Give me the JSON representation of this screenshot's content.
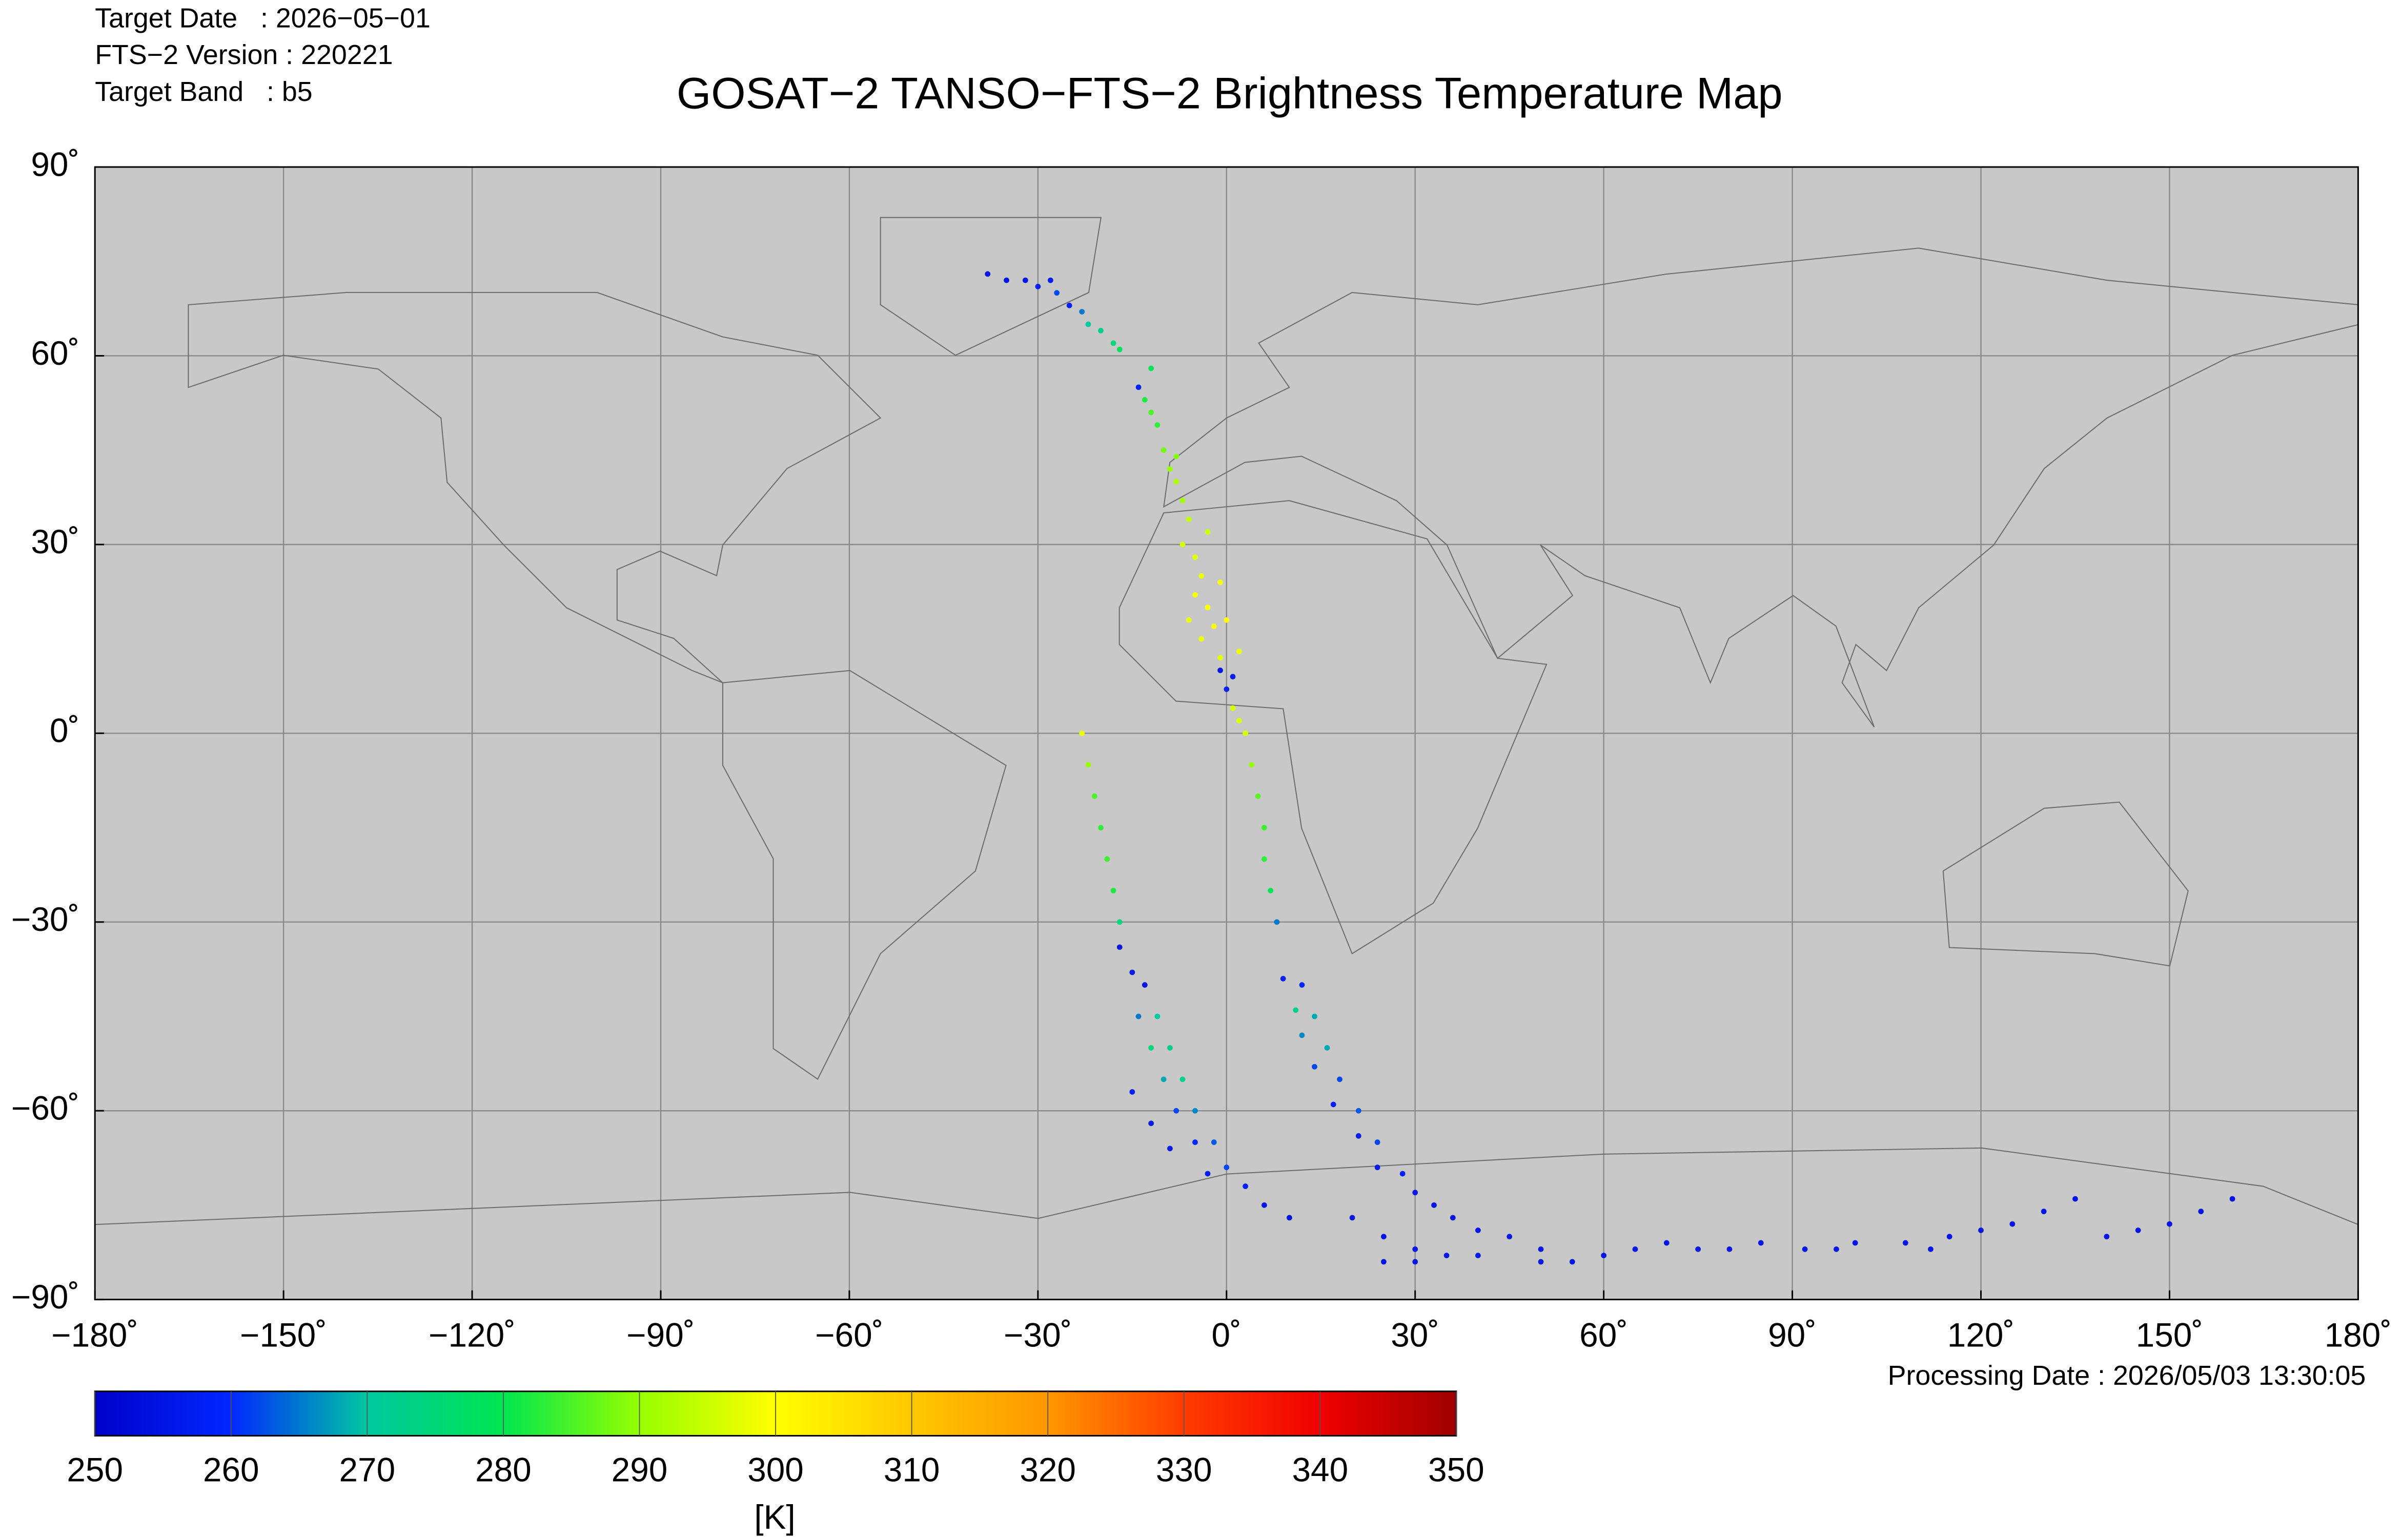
{
  "chart_data": {
    "type": "scatter",
    "title": "GOSAT−2 TANSO−FTS−2 Brightness Temperature Map",
    "info_lines": [
      "Target Date   : 2026−05−01",
      "FTS−2 Version : 220221",
      "Target Band   : b5"
    ],
    "footnote": "Processing Date : 2026/05/03 13:30:05",
    "xlim": [
      -180,
      180
    ],
    "ylim": [
      -90,
      90
    ],
    "xticks": [
      {
        "value": -180,
        "label": "−180˚"
      },
      {
        "value": -150,
        "label": "−150˚"
      },
      {
        "value": -120,
        "label": "−120˚"
      },
      {
        "value": -90,
        "label": "−90˚"
      },
      {
        "value": -60,
        "label": "−60˚"
      },
      {
        "value": -30,
        "label": "−30˚"
      },
      {
        "value": 0,
        "label": "0˚"
      },
      {
        "value": 30,
        "label": "30˚"
      },
      {
        "value": 60,
        "label": "60˚"
      },
      {
        "value": 90,
        "label": "90˚"
      },
      {
        "value": 120,
        "label": "120˚"
      },
      {
        "value": 150,
        "label": "150˚"
      },
      {
        "value": 180,
        "label": "180˚"
      }
    ],
    "yticks": [
      {
        "value": -90,
        "label": "−90˚"
      },
      {
        "value": -60,
        "label": "−60˚"
      },
      {
        "value": -30,
        "label": "−30˚"
      },
      {
        "value": 0,
        "label": "0˚"
      },
      {
        "value": 30,
        "label": "30˚"
      },
      {
        "value": 60,
        "label": "60˚"
      },
      {
        "value": 90,
        "label": "90˚"
      }
    ],
    "grid": true,
    "colorbar": {
      "label": "[K]",
      "lim": [
        250,
        350
      ],
      "ticks": [
        250,
        260,
        270,
        280,
        290,
        300,
        310,
        320,
        330,
        340,
        350
      ],
      "colors": [
        "#0000c8",
        "#0028ff",
        "#00c8a0",
        "#00e650",
        "#96ff00",
        "#ffff00",
        "#ffc800",
        "#ff9600",
        "#ff3c00",
        "#f00000",
        "#a00000"
      ]
    },
    "series": [
      {
        "x": [
          -38,
          -35,
          -32,
          -30,
          -28,
          -27,
          -25,
          -23,
          -22,
          -20,
          -18,
          -17,
          -14,
          -13,
          -12,
          -11,
          -10,
          -9,
          -8,
          -7,
          -6,
          -7,
          -5,
          -4,
          -5,
          -3,
          -2,
          -4,
          -1,
          -1,
          1,
          0,
          1,
          2,
          3,
          4,
          5,
          6,
          6,
          7,
          8,
          -12,
          -8,
          -3,
          -1,
          0,
          -6,
          2,
          -23,
          -22,
          -21,
          -20,
          -19,
          -18,
          -17,
          -17,
          -15,
          -13,
          -14,
          -11,
          -12,
          -9,
          -10,
          -7,
          -8,
          -5,
          -5,
          -2,
          -3,
          0,
          3,
          -15,
          -12,
          -9,
          6,
          10,
          9,
          12,
          11,
          14,
          12,
          16,
          14,
          18,
          17,
          21,
          21,
          24,
          24,
          28,
          30,
          33,
          36,
          40,
          45,
          50,
          20,
          25,
          30,
          25,
          30,
          35,
          40,
          50,
          55,
          60,
          65,
          70,
          75,
          80,
          85,
          92,
          97,
          100,
          108,
          112,
          115,
          120,
          125,
          130,
          135,
          140,
          145,
          150,
          155,
          160
        ],
        "y": [
          73,
          72,
          72,
          71,
          72,
          70,
          68,
          67,
          65,
          64,
          62,
          61,
          55,
          53,
          51,
          49,
          45,
          42,
          40,
          37,
          34,
          30,
          28,
          25,
          22,
          20,
          17,
          15,
          12,
          10,
          9,
          7,
          4,
          2,
          0,
          -5,
          -10,
          -15,
          -20,
          -25,
          -30,
          58,
          44,
          32,
          24,
          18,
          18,
          13,
          0,
          -5,
          -10,
          -15,
          -20,
          -25,
          -30,
          -34,
          -38,
          -40,
          -45,
          -45,
          -50,
          -50,
          -55,
          -55,
          -60,
          -60,
          -65,
          -65,
          -70,
          -69,
          -72,
          -57,
          -62,
          -66,
          -75,
          -77,
          -39,
          -40,
          -44,
          -45,
          -48,
          -50,
          -53,
          -55,
          -59,
          -60,
          -64,
          -65,
          -69,
          -70,
          -73,
          -75,
          -77,
          -79,
          -80,
          -82,
          -77,
          -80,
          -82,
          -84,
          -84,
          -83,
          -83,
          -84,
          -84,
          -83,
          -82,
          -81,
          -82,
          -82,
          -81,
          -82,
          -82,
          -81,
          -81,
          -82,
          -80,
          -79,
          -78,
          -76,
          -74,
          -80,
          -79,
          -78,
          -76,
          -74
        ],
        "values": [
          255,
          255,
          256,
          258,
          257,
          262,
          258,
          265,
          270,
          272,
          275,
          278,
          258,
          282,
          285,
          283,
          288,
          290,
          292,
          291,
          294,
          296,
          297,
          298,
          299,
          300,
          299,
          298,
          297,
          255,
          257,
          258,
          296,
          297,
          296,
          290,
          286,
          284,
          283,
          280,
          265,
          279,
          289,
          295,
          299,
          300,
          298,
          298,
          298,
          290,
          285,
          283,
          284,
          282,
          275,
          255,
          256,
          255,
          265,
          270,
          275,
          272,
          268,
          273,
          262,
          266,
          260,
          263,
          257,
          262,
          258,
          258,
          256,
          256,
          255,
          255,
          258,
          260,
          272,
          268,
          266,
          268,
          262,
          262,
          258,
          263,
          257,
          262,
          256,
          258,
          255,
          255,
          255,
          255,
          255,
          255,
          255,
          255,
          255,
          255,
          255,
          255,
          256,
          255,
          255,
          255,
          255,
          255,
          255,
          255,
          255,
          255,
          255,
          255,
          255,
          255,
          255,
          255,
          255,
          255,
          255,
          255,
          255,
          255,
          255,
          255
        ]
      }
    ]
  }
}
